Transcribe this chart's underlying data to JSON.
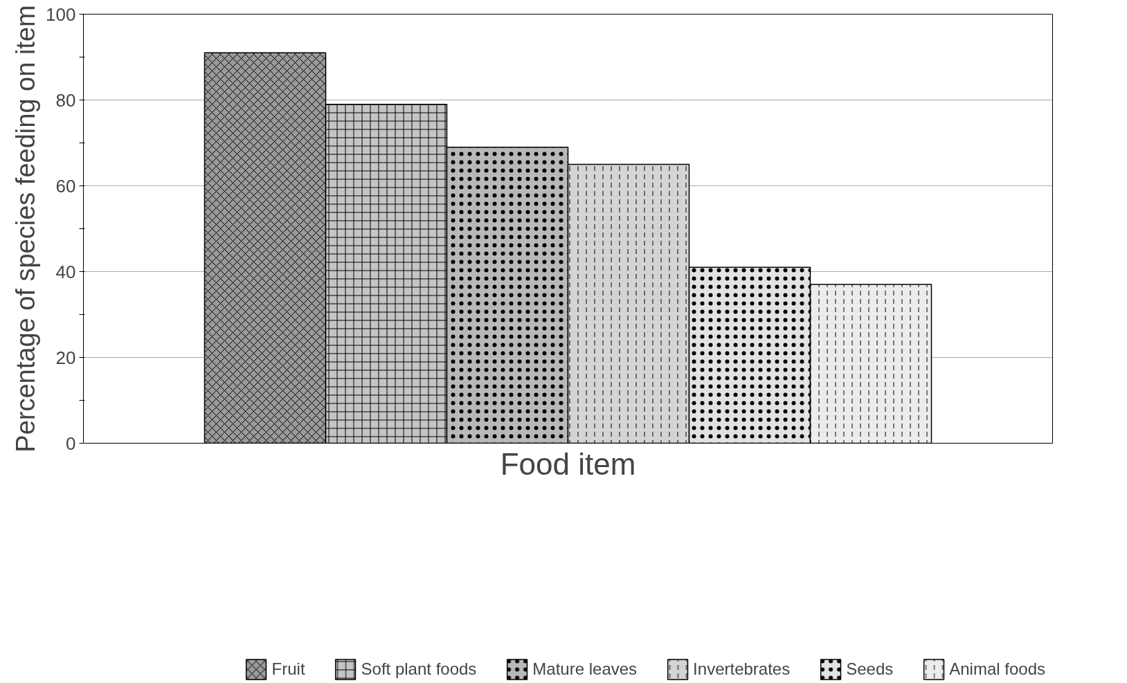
{
  "chart_data": {
    "type": "bar",
    "xlabel": "Food item",
    "ylabel": "Percentage of species feeding on item",
    "categories": [
      null,
      null,
      null,
      null,
      null,
      null,
      null,
      null
    ],
    "series": [
      {
        "name": "Fruit",
        "color": "#9a9a9a",
        "values": [
          null,
          91,
          null,
          null,
          null,
          null,
          null,
          null
        ]
      },
      {
        "name": "Soft plant foods",
        "color": "#c4c4c4",
        "values": [
          null,
          null,
          79,
          null,
          null,
          null,
          null,
          null
        ]
      },
      {
        "name": "Mature leaves",
        "color": "#b8b8b8",
        "values": [
          null,
          null,
          null,
          69,
          null,
          null,
          null,
          null
        ]
      },
      {
        "name": "Invertebrates",
        "color": "#d4d4d4",
        "values": [
          null,
          null,
          null,
          null,
          65,
          null,
          null,
          null
        ]
      },
      {
        "name": "Seeds",
        "color": "#e2e2e2",
        "values": [
          null,
          null,
          null,
          null,
          null,
          41,
          null,
          null
        ]
      },
      {
        "name": "Animal foods",
        "color": "#ececec",
        "values": [
          null,
          null,
          null,
          null,
          null,
          null,
          37,
          null
        ]
      }
    ],
    "ylim": [
      0,
      100
    ],
    "yticks": [
      0,
      {
        "value": 10,
        "label": null
      },
      20,
      {
        "value": 30,
        "label": null
      },
      40,
      {
        "value": 50,
        "label": null
      },
      60,
      {
        "value": 70,
        "label": null
      },
      80,
      {
        "value": 90,
        "label": null
      },
      100
    ],
    "grid": "y",
    "legend": "bottom"
  }
}
